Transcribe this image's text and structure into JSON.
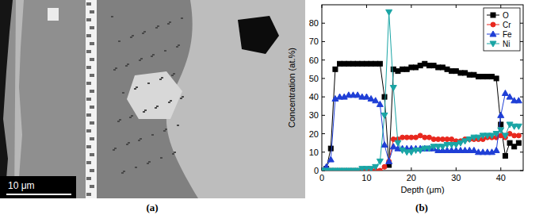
{
  "figure": {
    "panel_labels": [
      "(a)",
      "(b)"
    ],
    "scale_bar": "10 μm"
  },
  "chart_data": {
    "type": "line",
    "x_label": "Depth (μm)",
    "y_label": "Concentration (at.%)",
    "x": [
      0,
      1,
      2,
      3,
      4,
      5,
      6,
      7,
      8,
      9,
      10,
      11,
      12,
      13,
      14,
      15,
      16,
      17,
      18,
      19,
      20,
      21,
      22,
      23,
      24,
      25,
      26,
      27,
      28,
      29,
      30,
      31,
      32,
      33,
      34,
      35,
      36,
      37,
      38,
      39,
      40,
      41,
      42,
      43,
      44
    ],
    "series": [
      {
        "name": "O",
        "color": "#000000",
        "marker": "square",
        "line_style": "solid",
        "values": [
          0,
          1,
          12,
          55,
          58,
          58,
          58,
          58,
          58,
          58,
          58,
          58,
          58,
          58,
          40,
          3,
          55,
          54,
          55,
          55,
          56,
          56,
          57,
          58,
          57,
          57,
          56,
          56,
          55,
          54,
          54,
          53,
          53,
          52,
          52,
          51,
          51,
          51,
          51,
          50,
          25,
          8,
          15,
          13,
          15
        ]
      },
      {
        "name": "Cr",
        "color": "#e8281e",
        "marker": "circle",
        "line_style": "solid",
        "values": [
          0,
          0,
          0,
          0,
          0,
          0,
          0,
          0,
          0,
          0,
          0,
          0,
          0,
          0,
          2,
          5,
          17,
          17,
          18,
          18,
          18,
          18,
          19,
          18,
          18,
          17,
          17,
          17,
          17,
          17,
          16,
          16,
          17,
          17,
          17,
          17,
          17,
          18,
          18,
          18,
          19,
          18,
          20,
          19,
          19
        ]
      },
      {
        "name": "Fe",
        "color": "#1f3fd6",
        "marker": "triangle",
        "line_style": "solid",
        "values": [
          0,
          2,
          6,
          39,
          40,
          40,
          41,
          41,
          41,
          40,
          40,
          39,
          38,
          36,
          14,
          5,
          13,
          12,
          12,
          12,
          12,
          12,
          12,
          12,
          12,
          12,
          11,
          11,
          11,
          11,
          11,
          11,
          11,
          11,
          11,
          10,
          10,
          10,
          10,
          11,
          30,
          42,
          40,
          38,
          38
        ]
      },
      {
        "name": "Ni",
        "color": "#1aa5a5",
        "marker": "triangle-down",
        "line_style": "solid",
        "values": [
          0,
          0,
          0,
          0,
          0,
          0,
          0,
          0,
          0,
          1,
          1,
          1,
          2,
          5,
          30,
          86,
          45,
          15,
          11,
          10,
          10,
          11,
          11,
          12,
          12,
          13,
          13,
          13,
          14,
          14,
          14,
          15,
          16,
          17,
          18,
          18,
          19,
          19,
          19,
          20,
          22,
          19,
          25,
          24,
          24
        ]
      }
    ],
    "xlim": [
      0,
      45
    ],
    "xticks": [
      0,
      10,
      20,
      30,
      40
    ],
    "ylim": [
      0,
      90
    ],
    "yticks": [
      0,
      10,
      20,
      30,
      40,
      50,
      60,
      70,
      80
    ],
    "legend": "upper right",
    "grid": false
  }
}
